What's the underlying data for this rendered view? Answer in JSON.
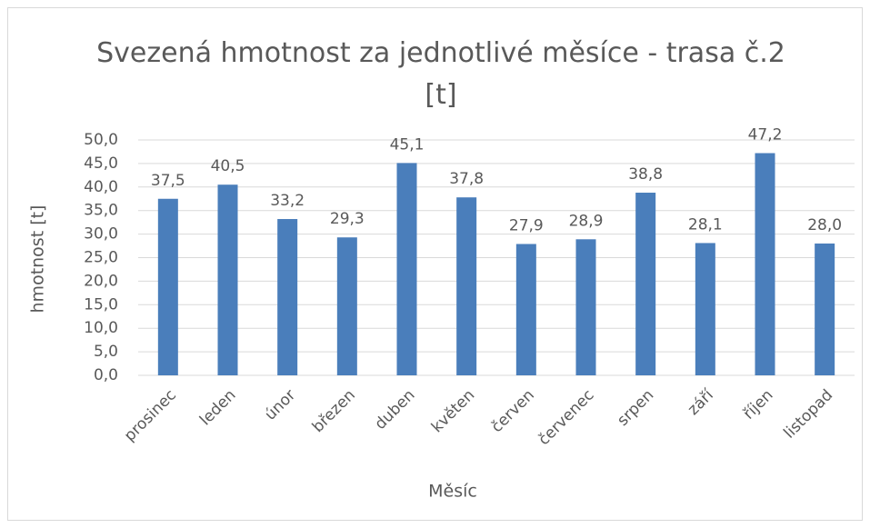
{
  "chart_data": {
    "type": "bar",
    "title": "Svezená hmotnost za jednotlivé měsíce - trasa č.2 [t]",
    "x_label": "Měsíc",
    "y_label": "hmotnost [t]",
    "categories": [
      "prosinec",
      "leden",
      "únor",
      "březen",
      "duben",
      "květen",
      "červen",
      "červenec",
      "srpen",
      "září",
      "říjen",
      "listopad"
    ],
    "values": [
      37.5,
      40.5,
      33.2,
      29.3,
      45.1,
      37.8,
      27.9,
      28.9,
      38.8,
      28.1,
      47.2,
      28.0
    ],
    "value_labels": [
      "37,5",
      "40,5",
      "33,2",
      "29,3",
      "45,1",
      "37,8",
      "27,9",
      "28,9",
      "38,8",
      "28,1",
      "47,2",
      "28,0"
    ],
    "color": "#4a7ebb",
    "ylim": [
      0,
      50
    ],
    "yticks": [
      {
        "value": 0,
        "label": "0,0"
      },
      {
        "value": 5,
        "label": "5,0"
      },
      {
        "value": 10,
        "label": "10,0"
      },
      {
        "value": 15,
        "label": "15,0"
      },
      {
        "value": 20,
        "label": "20,0"
      },
      {
        "value": 25,
        "label": "25,0"
      },
      {
        "value": 30,
        "label": "30,0"
      },
      {
        "value": 35,
        "label": "35,0"
      },
      {
        "value": 40,
        "label": "40,0"
      },
      {
        "value": 45,
        "label": "45,0"
      },
      {
        "value": 50,
        "label": "50,0"
      }
    ],
    "grid": true
  }
}
